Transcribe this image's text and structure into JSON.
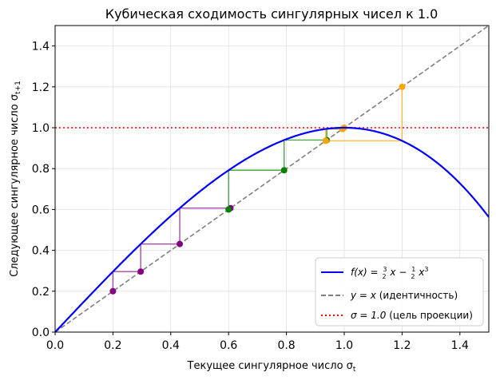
{
  "chart_data": {
    "type": "line",
    "title": "Кубическая сходимость сингулярных чисел к 1.0",
    "xlabel": "Текущее сингулярное число σt",
    "ylabel": "Следующее сингулярное число σt+1",
    "xlim": [
      0,
      1.5
    ],
    "ylim": [
      0,
      1.5
    ],
    "grid": true,
    "legend_position": "lower-right",
    "x_ticks": [
      "0.0",
      "0.2",
      "0.4",
      "0.6",
      "0.8",
      "1.0",
      "1.2",
      "1.4"
    ],
    "y_ticks": [
      "0.0",
      "0.2",
      "0.4",
      "0.6",
      "0.8",
      "1.0",
      "1.2",
      "1.4"
    ],
    "series": [
      {
        "name": "f(x) = 3/2x − 1/2x³",
        "kind": "function",
        "color": "#0000ff",
        "style": "solid"
      },
      {
        "name": "y = x (идентичность)",
        "kind": "identity",
        "color": "#808080",
        "style": "dashed"
      },
      {
        "name": "σ = 1.0 (цель проекции)",
        "kind": "hline",
        "value": 1.0,
        "color": "#ff0000",
        "style": "dotted"
      }
    ],
    "iterations": [
      {
        "start": 0.2,
        "steps": 3,
        "color": "#800080"
      },
      {
        "start": 0.6,
        "steps": 3,
        "color": "#008000"
      },
      {
        "start": 1.2,
        "steps": 3,
        "color": "#ffa500"
      }
    ],
    "legend": {
      "fx_label": "f(x) =",
      "fx_x1": "x −",
      "fx_x2": "x",
      "fx_exp": "3",
      "fx_frac1_num": "3",
      "fx_frac1_den": "2",
      "fx_frac2_num": "1",
      "fx_frac2_den": "2",
      "identity_math": "y = x",
      "identity_text": "(идентичность)",
      "sigma_math": "σ = 1.0",
      "sigma_text": "(цель проекции)"
    },
    "title_text": "Кубическая сходимость сингулярных чисел к 1.0",
    "xlabel_text": "Текущее сингулярное число σ",
    "xlabel_sub": "t",
    "ylabel_text": "Следующее сингулярное число σ",
    "ylabel_sub": "t+1"
  }
}
